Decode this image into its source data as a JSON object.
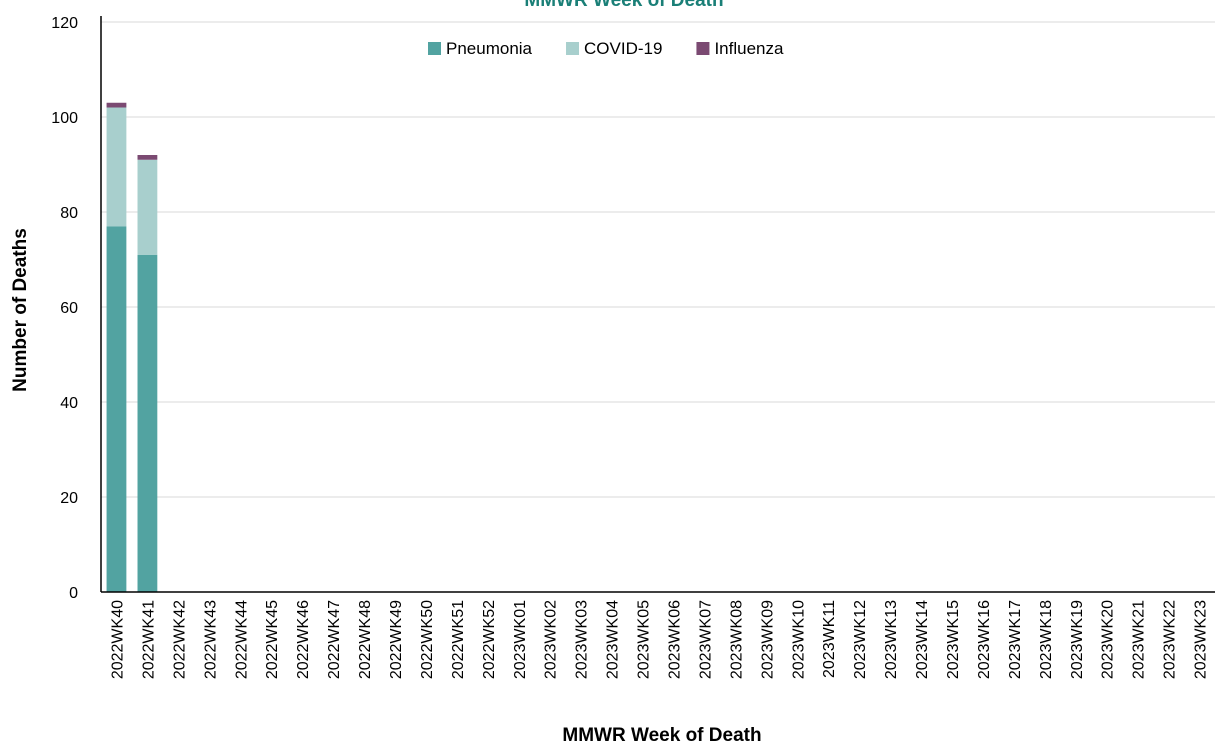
{
  "chart_data": {
    "type": "bar",
    "stacked": true,
    "title": "MMWR Week of Death",
    "xlabel": "MMWR Week of Death",
    "ylabel": "Number of Deaths",
    "ylim": [
      0,
      120
    ],
    "yticks": [
      0,
      20,
      40,
      60,
      80,
      100,
      120
    ],
    "grid": true,
    "legend_position": "top-center",
    "categories": [
      "2022WK40",
      "2022WK41",
      "2022WK42",
      "2022WK43",
      "2022WK44",
      "2022WK45",
      "2022WK46",
      "2022WK47",
      "2022WK48",
      "2022WK49",
      "2022WK50",
      "2022WK51",
      "2022WK52",
      "2023WK01",
      "2023WK02",
      "2023WK03",
      "2023WK04",
      "2023WK05",
      "2023WK06",
      "2023WK07",
      "2023WK08",
      "2023WK09",
      "2023WK10",
      "2023WK11",
      "2023WK12",
      "2023WK13",
      "2023WK14",
      "2023WK15",
      "2023WK16",
      "2023WK17",
      "2023WK18",
      "2023WK19",
      "2023WK20",
      "2023WK21",
      "2023WK22",
      "2023WK23"
    ],
    "series": [
      {
        "name": "Pneumonia",
        "color": "#52a3a1",
        "values": [
          77,
          71,
          0,
          0,
          0,
          0,
          0,
          0,
          0,
          0,
          0,
          0,
          0,
          0,
          0,
          0,
          0,
          0,
          0,
          0,
          0,
          0,
          0,
          0,
          0,
          0,
          0,
          0,
          0,
          0,
          0,
          0,
          0,
          0,
          0,
          0
        ]
      },
      {
        "name": "COVID-19",
        "color": "#a8cfcd",
        "values": [
          25,
          20,
          0,
          0,
          0,
          0,
          0,
          0,
          0,
          0,
          0,
          0,
          0,
          0,
          0,
          0,
          0,
          0,
          0,
          0,
          0,
          0,
          0,
          0,
          0,
          0,
          0,
          0,
          0,
          0,
          0,
          0,
          0,
          0,
          0,
          0
        ]
      },
      {
        "name": "Influenza",
        "color": "#7b4a72",
        "values": [
          1,
          1,
          0,
          0,
          0,
          0,
          0,
          0,
          0,
          0,
          0,
          0,
          0,
          0,
          0,
          0,
          0,
          0,
          0,
          0,
          0,
          0,
          0,
          0,
          0,
          0,
          0,
          0,
          0,
          0,
          0,
          0,
          0,
          0,
          0,
          0
        ]
      }
    ],
    "colors": {
      "title": "#1a7f77",
      "grid": "#d9d9d9",
      "axis": "#000000"
    }
  }
}
